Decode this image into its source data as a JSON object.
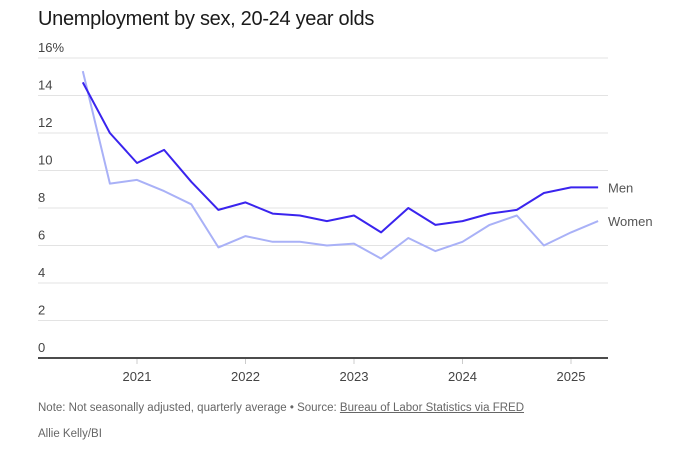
{
  "chart_data": {
    "type": "line",
    "title": "Unemployment by sex, 20-24 year olds",
    "xlabel": "",
    "ylabel": "",
    "ylim": [
      0,
      16
    ],
    "yticks": [
      "0",
      "2",
      "4",
      "6",
      "8",
      "10",
      "12",
      "14",
      "16%"
    ],
    "ytick_values": [
      0,
      2,
      4,
      6,
      8,
      10,
      12,
      14,
      16
    ],
    "xlim": [
      2020.35,
      2025.35
    ],
    "xticks": [
      "2021",
      "2022",
      "2023",
      "2024",
      "2025"
    ],
    "xtick_values": [
      2021,
      2022,
      2023,
      2024,
      2025
    ],
    "grid": true,
    "legend": "inline-right",
    "x": [
      2020.5,
      2020.75,
      2021.0,
      2021.25,
      2021.5,
      2021.75,
      2022.0,
      2022.25,
      2022.5,
      2022.75,
      2023.0,
      2023.25,
      2023.5,
      2023.75,
      2024.0,
      2024.25,
      2024.5,
      2024.75,
      2025.0,
      2025.25
    ],
    "series": [
      {
        "name": "Men",
        "color": "#3a24ee",
        "values": [
          14.7,
          12.0,
          10.4,
          11.1,
          9.4,
          7.9,
          8.3,
          7.7,
          7.6,
          7.3,
          7.6,
          6.7,
          8.0,
          7.1,
          7.3,
          7.7,
          7.9,
          8.8,
          9.1,
          9.1
        ]
      },
      {
        "name": "Women",
        "color": "#a9b1f7",
        "values": [
          15.3,
          9.3,
          9.5,
          8.9,
          8.2,
          5.9,
          6.5,
          6.2,
          6.2,
          6.0,
          6.1,
          5.3,
          6.4,
          5.7,
          6.2,
          7.1,
          7.6,
          6.0,
          6.7,
          7.3
        ]
      }
    ]
  },
  "footer": {
    "note": "Note: Not seasonally adjusted, quarterly average • Source: ",
    "source_link": "Bureau of Labor Statistics via FRED",
    "credit": "Allie Kelly/BI"
  }
}
